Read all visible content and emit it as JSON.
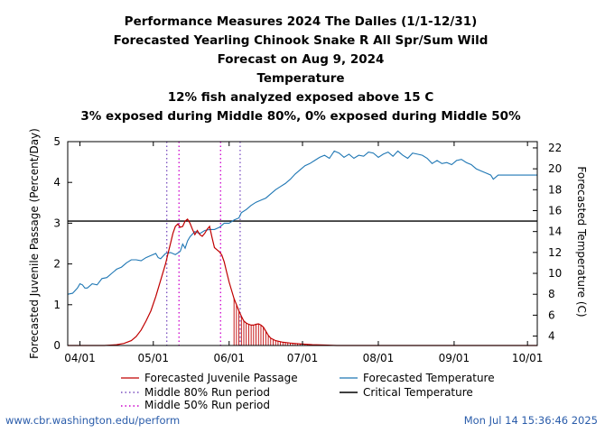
{
  "chart_data": {
    "type": "line",
    "title_lines": [
      "Performance Measures 2024 The Dalles (1/1-12/31)",
      "Forecasted Yearling Chinook Snake R All Spr/Sum Wild",
      "Forecast on Aug 9, 2024",
      "Temperature",
      "12% fish analyzed exposed above 15 C",
      "3% exposed during Middle 80%, 0% exposed during Middle 50%"
    ],
    "ylabel_left": "Forecasted Juvenile Passage (Percent/Day)",
    "ylabel_right": "Forecasted Temperature (C)",
    "x_ticks": [
      {
        "label": "04/01",
        "day": 0
      },
      {
        "label": "05/01",
        "day": 30
      },
      {
        "label": "06/01",
        "day": 61
      },
      {
        "label": "07/01",
        "day": 91
      },
      {
        "label": "08/01",
        "day": 122
      },
      {
        "label": "09/01",
        "day": 153
      },
      {
        "label": "10/01",
        "day": 183
      }
    ],
    "xlim": [
      -5,
      187
    ],
    "ylim_left": [
      0,
      5
    ],
    "yticks_left": [
      0,
      1,
      2,
      3,
      4,
      5
    ],
    "ylim_right": [
      3.1,
      22.6
    ],
    "yticks_right": [
      4,
      6,
      8,
      10,
      12,
      14,
      16,
      18,
      20,
      22
    ],
    "critical_temperature": 15,
    "middle80_days": [
      35.5,
      65.5
    ],
    "middle50_days": [
      40.5,
      57.5
    ],
    "observed_until_day": 63,
    "passage": {
      "name": "Forecasted Juvenile Passage",
      "color": "#c00000",
      "points": [
        [
          -5,
          0
        ],
        [
          10,
          0
        ],
        [
          15,
          0.02
        ],
        [
          18,
          0.05
        ],
        [
          21,
          0.12
        ],
        [
          23,
          0.22
        ],
        [
          25,
          0.38
        ],
        [
          27,
          0.6
        ],
        [
          29,
          0.85
        ],
        [
          31,
          1.2
        ],
        [
          33,
          1.6
        ],
        [
          35,
          2.0
        ],
        [
          36,
          2.25
        ],
        [
          37,
          2.5
        ],
        [
          38,
          2.75
        ],
        [
          39,
          2.92
        ],
        [
          40,
          2.98
        ],
        [
          41,
          2.9
        ],
        [
          42,
          2.92
        ],
        [
          43,
          3.05
        ],
        [
          44,
          3.1
        ],
        [
          45,
          3.0
        ],
        [
          46,
          2.85
        ],
        [
          47,
          2.72
        ],
        [
          48,
          2.82
        ],
        [
          49,
          2.72
        ],
        [
          50,
          2.68
        ],
        [
          51,
          2.75
        ],
        [
          52,
          2.85
        ],
        [
          53,
          2.92
        ],
        [
          54,
          2.65
        ],
        [
          55,
          2.4
        ],
        [
          56,
          2.35
        ],
        [
          57,
          2.3
        ],
        [
          58,
          2.22
        ],
        [
          59,
          2.05
        ],
        [
          60,
          1.8
        ],
        [
          61,
          1.55
        ],
        [
          62,
          1.35
        ],
        [
          63,
          1.15
        ],
        [
          64,
          1.0
        ],
        [
          65,
          0.85
        ],
        [
          66,
          0.72
        ],
        [
          67,
          0.6
        ],
        [
          68,
          0.55
        ],
        [
          69,
          0.52
        ],
        [
          70,
          0.5
        ],
        [
          71,
          0.5
        ],
        [
          72,
          0.52
        ],
        [
          73,
          0.53
        ],
        [
          74,
          0.5
        ],
        [
          75,
          0.45
        ],
        [
          76,
          0.35
        ],
        [
          77,
          0.25
        ],
        [
          78,
          0.18
        ],
        [
          80,
          0.12
        ],
        [
          83,
          0.08
        ],
        [
          86,
          0.06
        ],
        [
          90,
          0.04
        ],
        [
          95,
          0.02
        ],
        [
          100,
          0.01
        ],
        [
          105,
          0
        ],
        [
          187,
          0
        ]
      ]
    },
    "temperature": {
      "name": "Forecasted Temperature",
      "color": "#1f77b4",
      "points": [
        [
          -5,
          8.0
        ],
        [
          -3,
          8.1
        ],
        [
          -1,
          8.6
        ],
        [
          0,
          9.0
        ],
        [
          1,
          8.9
        ],
        [
          2,
          8.6
        ],
        [
          3,
          8.6
        ],
        [
          5,
          9.0
        ],
        [
          7,
          8.9
        ],
        [
          9,
          9.5
        ],
        [
          11,
          9.6
        ],
        [
          13,
          10.0
        ],
        [
          15,
          10.4
        ],
        [
          17,
          10.6
        ],
        [
          19,
          11.0
        ],
        [
          21,
          11.3
        ],
        [
          23,
          11.3
        ],
        [
          25,
          11.2
        ],
        [
          27,
          11.5
        ],
        [
          29,
          11.7
        ],
        [
          31,
          11.9
        ],
        [
          32,
          11.5
        ],
        [
          33,
          11.4
        ],
        [
          35,
          11.9
        ],
        [
          37,
          12.0
        ],
        [
          39,
          11.8
        ],
        [
          41,
          12.1
        ],
        [
          42,
          12.8
        ],
        [
          43,
          12.4
        ],
        [
          44,
          13.1
        ],
        [
          45,
          13.5
        ],
        [
          47,
          14.0
        ],
        [
          49,
          13.8
        ],
        [
          51,
          14.1
        ],
        [
          53,
          14.2
        ],
        [
          55,
          14.2
        ],
        [
          57,
          14.4
        ],
        [
          59,
          14.8
        ],
        [
          61,
          14.8
        ],
        [
          63,
          15.1
        ],
        [
          65,
          15.3
        ],
        [
          66,
          15.8
        ],
        [
          68,
          16.1
        ],
        [
          70,
          16.5
        ],
        [
          72,
          16.8
        ],
        [
          74,
          17.0
        ],
        [
          76,
          17.2
        ],
        [
          78,
          17.6
        ],
        [
          80,
          18.0
        ],
        [
          82,
          18.3
        ],
        [
          84,
          18.6
        ],
        [
          86,
          19.0
        ],
        [
          88,
          19.5
        ],
        [
          90,
          19.9
        ],
        [
          92,
          20.3
        ],
        [
          94,
          20.5
        ],
        [
          96,
          20.8
        ],
        [
          98,
          21.1
        ],
        [
          100,
          21.3
        ],
        [
          102,
          21.0
        ],
        [
          104,
          21.7
        ],
        [
          106,
          21.5
        ],
        [
          108,
          21.1
        ],
        [
          110,
          21.4
        ],
        [
          112,
          21.0
        ],
        [
          114,
          21.3
        ],
        [
          116,
          21.2
        ],
        [
          118,
          21.6
        ],
        [
          120,
          21.5
        ],
        [
          122,
          21.1
        ],
        [
          124,
          21.4
        ],
        [
          126,
          21.6
        ],
        [
          128,
          21.2
        ],
        [
          130,
          21.7
        ],
        [
          132,
          21.3
        ],
        [
          134,
          21.0
        ],
        [
          136,
          21.5
        ],
        [
          138,
          21.4
        ],
        [
          140,
          21.3
        ],
        [
          142,
          21.0
        ],
        [
          144,
          20.5
        ],
        [
          146,
          20.8
        ],
        [
          148,
          20.5
        ],
        [
          150,
          20.6
        ],
        [
          152,
          20.4
        ],
        [
          154,
          20.8
        ],
        [
          156,
          20.9
        ],
        [
          158,
          20.6
        ],
        [
          160,
          20.4
        ],
        [
          162,
          20.0
        ],
        [
          164,
          19.8
        ],
        [
          166,
          19.6
        ],
        [
          168,
          19.4
        ],
        [
          169,
          19.0
        ],
        [
          171,
          19.4
        ],
        [
          175,
          19.4
        ],
        [
          180,
          19.4
        ],
        [
          187,
          19.4
        ]
      ]
    },
    "legend": {
      "passage": "Forecasted Juvenile Passage",
      "temperature": "Forecasted Temperature",
      "middle80": "Middle 80% Run period",
      "critical": "Critical Temperature",
      "middle50": "Middle 50% Run period"
    },
    "colors": {
      "middle80": "#7a4fbf",
      "middle50": "#cc00cc",
      "critical": "#000000"
    }
  },
  "footer": {
    "url": "www.cbr.washington.edu/perform",
    "timestamp": "Mon Jul 14 15:36:46 2025"
  }
}
